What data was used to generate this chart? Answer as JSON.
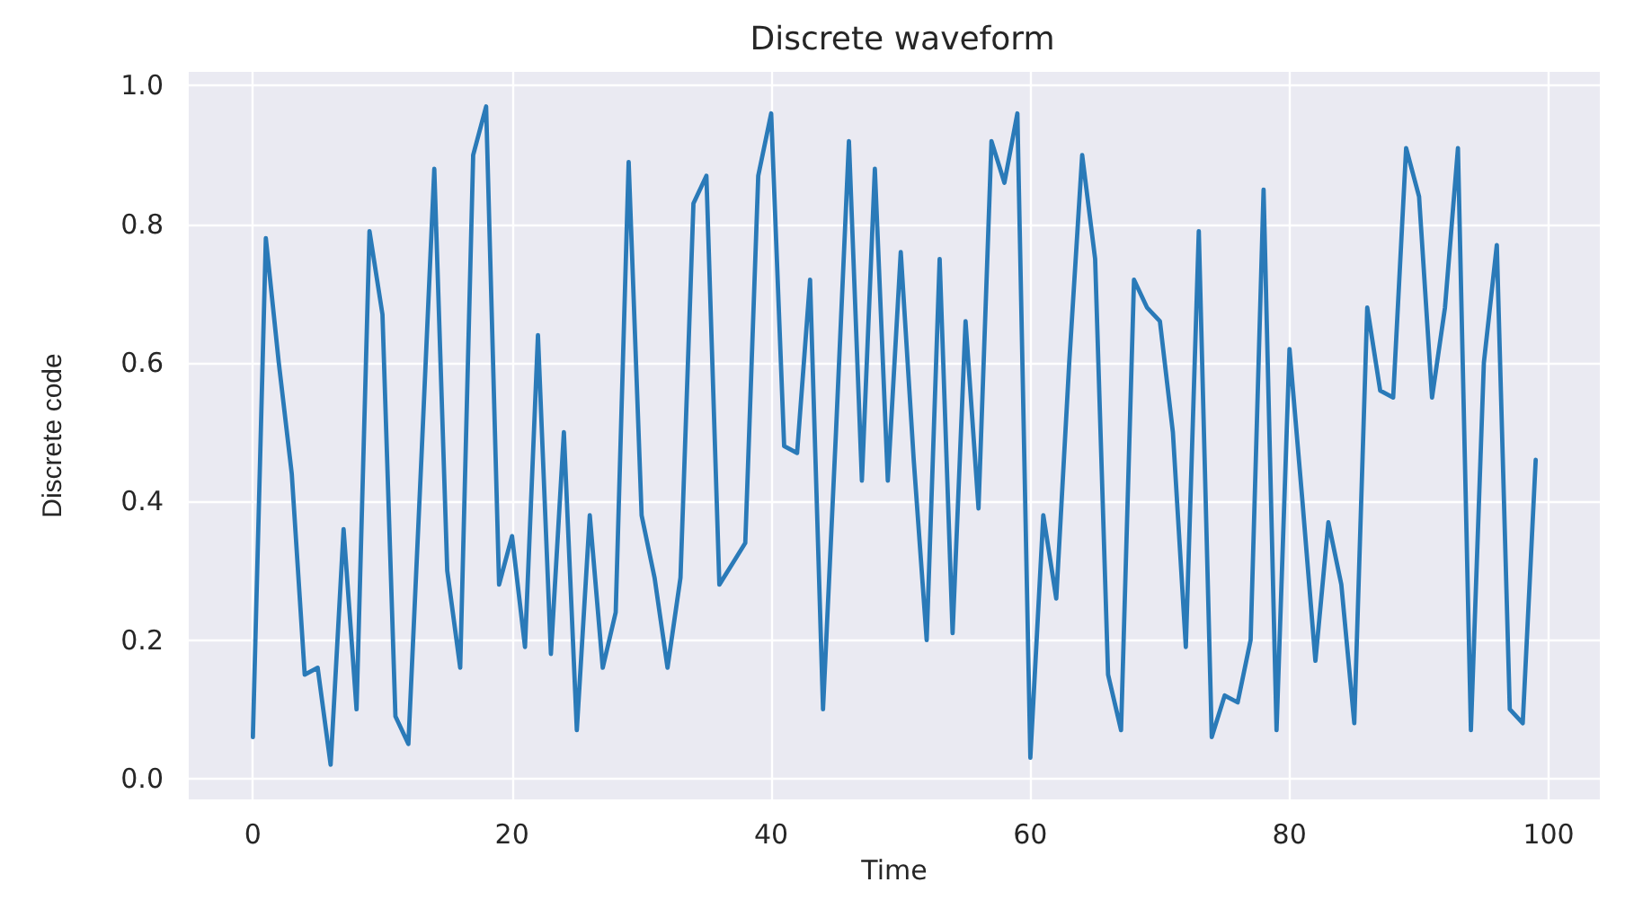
{
  "chart_data": {
    "type": "line",
    "title": "Discrete waveform",
    "xlabel": "Time",
    "ylabel": "Discrete code",
    "x": [
      0,
      1,
      2,
      3,
      4,
      5,
      6,
      7,
      8,
      9,
      10,
      11,
      12,
      13,
      14,
      15,
      16,
      17,
      18,
      19,
      20,
      21,
      22,
      23,
      24,
      25,
      26,
      27,
      28,
      29,
      30,
      31,
      32,
      33,
      34,
      35,
      36,
      37,
      38,
      39,
      40,
      41,
      42,
      43,
      44,
      45,
      46,
      47,
      48,
      49,
      50,
      51,
      52,
      53,
      54,
      55,
      56,
      57,
      58,
      59,
      60,
      61,
      62,
      63,
      64,
      65,
      66,
      67,
      68,
      69,
      70,
      71,
      72,
      73,
      74,
      75,
      76,
      77,
      78,
      79,
      80,
      81,
      82,
      83,
      84,
      85,
      86,
      87,
      88,
      89,
      90,
      91,
      92,
      93,
      94,
      95,
      96,
      97,
      98,
      99
    ],
    "series": [
      {
        "color": "#2a7ab8",
        "values": [
          0.06,
          0.78,
          0.6,
          0.44,
          0.15,
          0.16,
          0.02,
          0.36,
          0.1,
          0.79,
          0.67,
          0.09,
          0.05,
          0.46,
          0.88,
          0.3,
          0.16,
          0.9,
          0.97,
          0.28,
          0.35,
          0.19,
          0.64,
          0.18,
          0.5,
          0.07,
          0.38,
          0.16,
          0.24,
          0.89,
          0.38,
          0.29,
          0.16,
          0.29,
          0.83,
          0.87,
          0.28,
          0.31,
          0.34,
          0.87,
          0.96,
          0.48,
          0.47,
          0.72,
          0.1,
          0.5,
          0.92,
          0.43,
          0.88,
          0.43,
          0.76,
          0.46,
          0.2,
          0.75,
          0.21,
          0.66,
          0.39,
          0.92,
          0.86,
          0.96,
          0.03,
          0.38,
          0.26,
          0.6,
          0.9,
          0.75,
          0.15,
          0.07,
          0.72,
          0.68,
          0.66,
          0.5,
          0.19,
          0.79,
          0.06,
          0.12,
          0.11,
          0.2,
          0.85,
          0.07,
          0.62,
          0.4,
          0.17,
          0.37,
          0.28,
          0.08,
          0.68,
          0.56,
          0.55,
          0.91,
          0.84,
          0.55,
          0.68,
          0.91,
          0.07,
          0.6,
          0.77,
          0.1,
          0.08,
          0.46
        ]
      }
    ],
    "xlim": [
      -4.95,
      103.95
    ],
    "xticks": [
      0,
      20,
      40,
      60,
      80,
      100
    ],
    "ylim": [
      -0.03,
      1.02
    ],
    "yticks": [
      {
        "value": 0,
        "label": "0.0"
      },
      {
        "value": 0.2,
        "label": "0.2"
      },
      {
        "value": 0.4,
        "label": "0.4"
      },
      {
        "value": 0.6,
        "label": "0.6"
      },
      {
        "value": 0.8,
        "label": "0.8"
      },
      {
        "value": 1,
        "label": "1.0"
      }
    ],
    "grid": true,
    "marker": "none",
    "line_style": "solid"
  }
}
